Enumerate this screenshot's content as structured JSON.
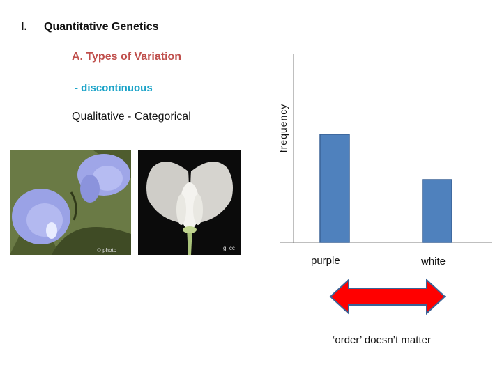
{
  "slide": {
    "numeral": "I.",
    "title": "Quantitative Genetics",
    "subtitle": "A.  Types of Variation",
    "bullet": "- discontinuous",
    "description": "Qualitative - Categorical",
    "note": "‘order’ doesn’t matter",
    "accent_color": "#c0504d",
    "cyan_color": "#1aa3c8",
    "photo_credit_right": "g. cc"
  },
  "chart_data": {
    "type": "bar",
    "categories": [
      "purple",
      "white"
    ],
    "values": [
      155,
      90
    ],
    "ylabel": "frequency",
    "xlabel": "",
    "title": "",
    "bar_color": "#4f81bd",
    "bar_edge_color": "#3a6296",
    "grid": false,
    "arrow_color": "#ff0000"
  },
  "images": {
    "left_photo": "pale-blue-pea-flowers",
    "right_photo": "white-pea-flower-on-black"
  }
}
